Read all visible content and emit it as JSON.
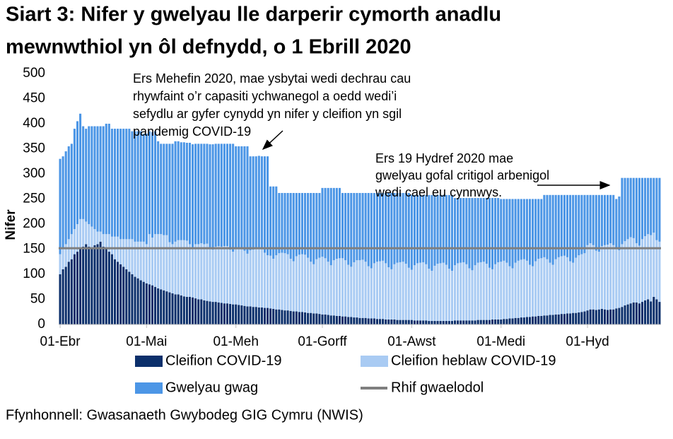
{
  "chart_data": {
    "type": "stacked-bar",
    "title_lines": [
      "Siart 3: Nifer y gwelyau lle darperir cymorth anadlu",
      "mewnwthiol yn ôl defnydd, o 1 Ebrill 2020"
    ],
    "ylabel": "Nifer",
    "source": "Ffynhonnell: Gwasanaeth Gwybodeg GIG Cymru (NWIS)",
    "annotations": [
      {
        "lines": [
          "Ers Mehefin 2020, mae ysbytai wedi dechrau cau",
          "rhywfaint o’r capasiti ychwanegol a oedd wedi’i",
          "sefydlu ar gyfer cynydd yn nifer y cleifion yn sgil",
          "pandemig COVID-19"
        ]
      },
      {
        "lines": [
          "Ers 19 Hydref 2020 mae",
          "gwelyau gofal critigol arbenigol",
          "wedi cael eu cynnwys."
        ]
      }
    ],
    "ylim": [
      0,
      500
    ],
    "yticks": [
      0,
      50,
      100,
      150,
      200,
      250,
      300,
      350,
      400,
      450,
      500
    ],
    "baseline": {
      "name": "Rhif gwaelodol",
      "value": 152,
      "color": "#7f7f7f"
    },
    "categories": [
      "01-Ebr",
      null,
      null,
      null,
      null,
      null,
      null,
      null,
      null,
      null,
      null,
      null,
      null,
      null,
      null,
      null,
      null,
      null,
      null,
      null,
      null,
      null,
      null,
      null,
      null,
      null,
      null,
      null,
      null,
      null,
      "01-Mai",
      null,
      null,
      null,
      null,
      null,
      null,
      null,
      null,
      null,
      null,
      null,
      null,
      null,
      null,
      null,
      null,
      null,
      null,
      null,
      null,
      null,
      null,
      null,
      null,
      null,
      null,
      null,
      null,
      null,
      null,
      "01-Meh",
      null,
      null,
      null,
      null,
      null,
      null,
      null,
      null,
      null,
      null,
      null,
      null,
      null,
      null,
      null,
      null,
      null,
      null,
      null,
      null,
      null,
      null,
      null,
      null,
      null,
      null,
      null,
      null,
      null,
      "01-Gorff",
      null,
      null,
      null,
      null,
      null,
      null,
      null,
      null,
      null,
      null,
      null,
      null,
      null,
      null,
      null,
      null,
      null,
      null,
      null,
      null,
      null,
      null,
      null,
      null,
      null,
      null,
      null,
      null,
      null,
      null,
      "01-Awst",
      null,
      null,
      null,
      null,
      null,
      null,
      null,
      null,
      null,
      null,
      null,
      null,
      null,
      null,
      null,
      null,
      null,
      null,
      null,
      null,
      null,
      null,
      null,
      null,
      null,
      null,
      null,
      null,
      null,
      null,
      "01-Medi",
      null,
      null,
      null,
      null,
      null,
      null,
      null,
      null,
      null,
      null,
      null,
      null,
      null,
      null,
      null,
      null,
      null,
      null,
      null,
      null,
      null,
      null,
      null,
      null,
      null,
      null,
      null,
      null,
      null,
      "01-Hyd",
      null,
      null,
      null,
      null,
      null,
      null,
      null,
      null,
      null,
      null,
      null,
      null,
      null,
      null,
      null,
      null,
      null,
      null,
      null,
      null,
      null,
      null,
      null,
      null,
      null
    ],
    "series": [
      {
        "name": "Cleifion COVID-19",
        "color": "#0b2f6b",
        "values": [
          100,
          110,
          115,
          125,
          130,
          140,
          145,
          150,
          155,
          160,
          155,
          150,
          158,
          160,
          165,
          155,
          150,
          145,
          140,
          130,
          125,
          120,
          115,
          110,
          105,
          100,
          95,
          92,
          88,
          85,
          82,
          80,
          78,
          75,
          72,
          70,
          68,
          66,
          64,
          62,
          60,
          60,
          58,
          56,
          55,
          55,
          54,
          52,
          50,
          50,
          48,
          47,
          46,
          45,
          45,
          44,
          43,
          42,
          42,
          41,
          40,
          40,
          39,
          38,
          37,
          36,
          36,
          35,
          35,
          34,
          34,
          33,
          33,
          32,
          31,
          30,
          30,
          29,
          28,
          28,
          27,
          26,
          26,
          25,
          25,
          24,
          23,
          23,
          22,
          22,
          21,
          20,
          20,
          19,
          18,
          18,
          17,
          17,
          16,
          16,
          15,
          15,
          14,
          14,
          13,
          13,
          13,
          12,
          12,
          12,
          11,
          11,
          11,
          10,
          10,
          10,
          10,
          9,
          9,
          9,
          9,
          9,
          9,
          8,
          8,
          8,
          8,
          8,
          7,
          7,
          7,
          7,
          7,
          7,
          7,
          7,
          7,
          8,
          8,
          8,
          8,
          8,
          8,
          8,
          8,
          9,
          9,
          9,
          9,
          9,
          10,
          10,
          10,
          10,
          11,
          11,
          12,
          12,
          13,
          13,
          14,
          14,
          15,
          15,
          16,
          16,
          17,
          17,
          18,
          18,
          19,
          19,
          20,
          20,
          21,
          21,
          22,
          22,
          23,
          23,
          24,
          25,
          26,
          28,
          30,
          30,
          29,
          30,
          31,
          30,
          29,
          30,
          30,
          32,
          33,
          35,
          38,
          40,
          42,
          44,
          44,
          42,
          45,
          48,
          50,
          46,
          55,
          50,
          45
        ]
      },
      {
        "name": "Cleifion heblaw COVID-19",
        "color": "#a9cbf3",
        "values": [
          40,
          40,
          45,
          45,
          50,
          50,
          55,
          60,
          55,
          45,
          45,
          45,
          32,
          25,
          20,
          25,
          30,
          35,
          35,
          45,
          50,
          50,
          55,
          60,
          65,
          70,
          70,
          73,
          77,
          80,
          78,
          100,
          95,
          105,
          108,
          110,
          110,
          112,
          100,
          98,
          105,
          108,
          110,
          112,
          112,
          105,
          100,
          108,
          110,
          112,
          112,
          114,
          108,
          104,
          110,
          112,
          112,
          114,
          114,
          108,
          105,
          110,
          112,
          114,
          110,
          105,
          112,
          114,
          115,
          116,
          116,
          110,
          105,
          105,
          100,
          108,
          112,
          114,
          114,
          112,
          104,
          100,
          110,
          114,
          115,
          115,
          110,
          102,
          98,
          108,
          112,
          115,
          112,
          106,
          100,
          110,
          114,
          115,
          116,
          112,
          104,
          100,
          110,
          114,
          115,
          116,
          112,
          104,
          100,
          110,
          114,
          115,
          116,
          112,
          104,
          100,
          110,
          114,
          115,
          116,
          112,
          104,
          100,
          110,
          114,
          115,
          116,
          112,
          104,
          100,
          110,
          114,
          115,
          116,
          112,
          104,
          100,
          110,
          114,
          115,
          116,
          112,
          104,
          100,
          110,
          114,
          115,
          116,
          112,
          104,
          100,
          110,
          114,
          115,
          116,
          112,
          104,
          100,
          110,
          114,
          115,
          116,
          112,
          104,
          100,
          110,
          114,
          115,
          116,
          112,
          104,
          100,
          110,
          114,
          115,
          116,
          112,
          104,
          100,
          110,
          114,
          115,
          116,
          130,
          132,
          128,
          118,
          115,
          125,
          128,
          130,
          132,
          128,
          118,
          115,
          125,
          128,
          130,
          132,
          128,
          118,
          115,
          125,
          128,
          130,
          132,
          128,
          118,
          120
        ]
      },
      {
        "name": "Gwelyau gwag",
        "color": "#4c96e6",
        "values": [
          190,
          185,
          185,
          185,
          180,
          200,
          205,
          210,
          185,
          185,
          195,
          200,
          205,
          210,
          210,
          215,
          220,
          220,
          215,
          215,
          215,
          220,
          220,
          220,
          220,
          215,
          220,
          220,
          220,
          215,
          220,
          205,
          210,
          205,
          185,
          180,
          182,
          182,
          196,
          200,
          200,
          197,
          195,
          195,
          195,
          202,
          205,
          200,
          200,
          198,
          200,
          199,
          205,
          210,
          205,
          204,
          205,
          204,
          204,
          211,
          215,
          205,
          204,
          203,
          208,
          214,
          187,
          186,
          185,
          186,
          185,
          192,
          197,
          138,
          144,
          137,
          120,
          119,
          120,
          122,
          131,
          136,
          126,
          123,
          122,
          123,
          129,
          137,
          142,
          132,
          129,
          137,
          140,
          147,
          154,
          144,
          141,
          140,
          130,
          134,
          143,
          147,
          138,
          134,
          134,
          133,
          137,
          146,
          150,
          140,
          137,
          136,
          135,
          140,
          148,
          152,
          142,
          139,
          138,
          137,
          141,
          149,
          149,
          140,
          136,
          135,
          134,
          138,
          147,
          151,
          141,
          137,
          136,
          135,
          139,
          147,
          151,
          134,
          130,
          129,
          128,
          132,
          140,
          144,
          134,
          129,
          128,
          127,
          131,
          139,
          142,
          132,
          128,
          125,
          123,
          127,
          134,
          138,
          127,
          123,
          121,
          120,
          123,
          131,
          134,
          124,
          119,
          118,
          124,
          128,
          135,
          139,
          128,
          124,
          122,
          121,
          124,
          132,
          135,
          125,
          120,
          118,
          116,
          100,
          96,
          100,
          111,
          113,
          102,
          100,
          99,
          96,
          100,
          100,
          107,
          132,
          126,
          122,
          118,
          120,
          130,
          135,
          122,
          116,
          112,
          114,
          109,
          124,
          127
        ]
      }
    ]
  }
}
